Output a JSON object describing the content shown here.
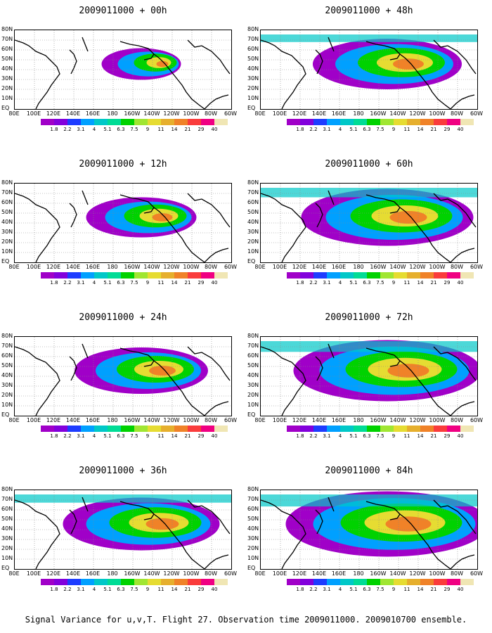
{
  "chart_data": [
    {
      "type": "heatmap",
      "title": "2009011000 + 00h",
      "intensity": 0.15
    },
    {
      "type": "heatmap",
      "title": "2009011000 + 12h",
      "intensity": 0.35
    },
    {
      "type": "heatmap",
      "title": "2009011000 + 24h",
      "intensity": 0.5
    },
    {
      "type": "heatmap",
      "title": "2009011000 + 36h",
      "intensity": 0.65
    },
    {
      "type": "heatmap",
      "title": "2009011000 + 48h",
      "intensity": 0.6
    },
    {
      "type": "heatmap",
      "title": "2009011000 + 60h",
      "intensity": 0.75
    },
    {
      "type": "heatmap",
      "title": "2009011000 + 72h",
      "intensity": 0.85
    },
    {
      "type": "heatmap",
      "title": "2009011000 + 84h",
      "intensity": 0.95
    }
  ],
  "x_ticks": [
    "80E",
    "100E",
    "120E",
    "140E",
    "160E",
    "180",
    "160W",
    "140W",
    "120W",
    "100W",
    "80W",
    "60W"
  ],
  "y_ticks": [
    "80N",
    "70N",
    "60N",
    "50N",
    "40N",
    "30N",
    "20N",
    "10N",
    "EQ"
  ],
  "colorbar": {
    "labels": [
      "1.8",
      "2.2",
      "3.1",
      "4",
      "5.1",
      "6.3",
      "7.5",
      "9",
      "11",
      "14",
      "21",
      "29",
      "40"
    ],
    "colors": [
      "#a000c8",
      "#8200dc",
      "#1e3cff",
      "#00a0ff",
      "#00c8c8",
      "#00dc96",
      "#00d200",
      "#a0e632",
      "#e6dc32",
      "#e6af2d",
      "#f08228",
      "#fa3c3c",
      "#f00082",
      "#f0e6b4"
    ]
  },
  "caption": "Signal Variance for u,v,T. Flight 27. Observation time 2009011000. 2009010700 ensemble."
}
